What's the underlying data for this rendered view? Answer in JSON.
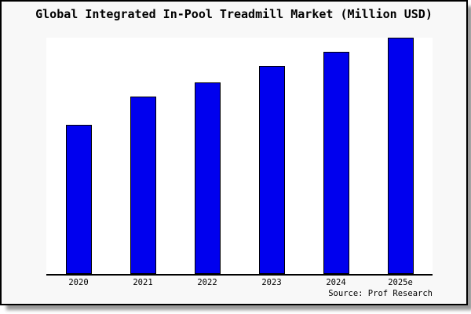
{
  "chart_data": {
    "type": "bar",
    "title": "Global Integrated In-Pool Treadmill Market (Million USD)",
    "categories": [
      "2020",
      "2021",
      "2022",
      "2023",
      "2024",
      "2025e"
    ],
    "values": [
      63,
      75,
      81,
      88,
      94,
      100
    ],
    "xlabel": "",
    "ylabel": "",
    "ylim": [
      0,
      100
    ],
    "grid": false,
    "legend": "none",
    "note": "No y-axis scale is shown in the image; values are relative bar heights with 2025e = 100",
    "bar_color": "#0000ee",
    "bar_border_color": "#000000"
  },
  "source": {
    "label": "Source: Prof Research"
  },
  "colors": {
    "canvas_background": "#f8f8f8",
    "plot_background": "#ffffff",
    "frame_border": "#000000",
    "shadow": "#999999",
    "text": "#000000"
  }
}
